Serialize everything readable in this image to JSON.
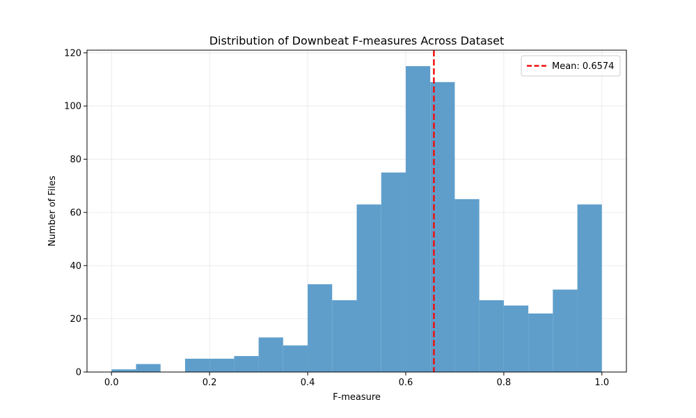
{
  "chart_data": {
    "type": "bar",
    "title": "Distribution of Downbeat F-measures Across Dataset",
    "xlabel": "F-measure",
    "ylabel": "Number of Files",
    "xlim": [
      -0.05,
      1.05
    ],
    "ylim": [
      0,
      121
    ],
    "xticks": [
      0.0,
      0.2,
      0.4,
      0.6,
      0.8,
      1.0
    ],
    "xtick_labels": [
      "0.0",
      "0.2",
      "0.4",
      "0.6",
      "0.8",
      "1.0"
    ],
    "yticks": [
      0,
      20,
      40,
      60,
      80,
      100,
      120
    ],
    "ytick_labels": [
      "0",
      "20",
      "40",
      "60",
      "80",
      "100",
      "120"
    ],
    "grid": true,
    "bin_edges": [
      0.0,
      0.05,
      0.1,
      0.15,
      0.2,
      0.25,
      0.3,
      0.35,
      0.4,
      0.45,
      0.5,
      0.55,
      0.6,
      0.65,
      0.7,
      0.75,
      0.8,
      0.85,
      0.9,
      0.95,
      1.0
    ],
    "values": [
      1,
      3,
      0,
      5,
      5,
      6,
      13,
      10,
      33,
      27,
      63,
      75,
      115,
      109,
      65,
      27,
      25,
      22,
      31,
      63
    ],
    "bar_color": "#5f9ecb",
    "mean": {
      "value": 0.6574,
      "label": "Mean: 0.6574",
      "color": "#ee1111"
    },
    "legend_position": "top-right"
  }
}
